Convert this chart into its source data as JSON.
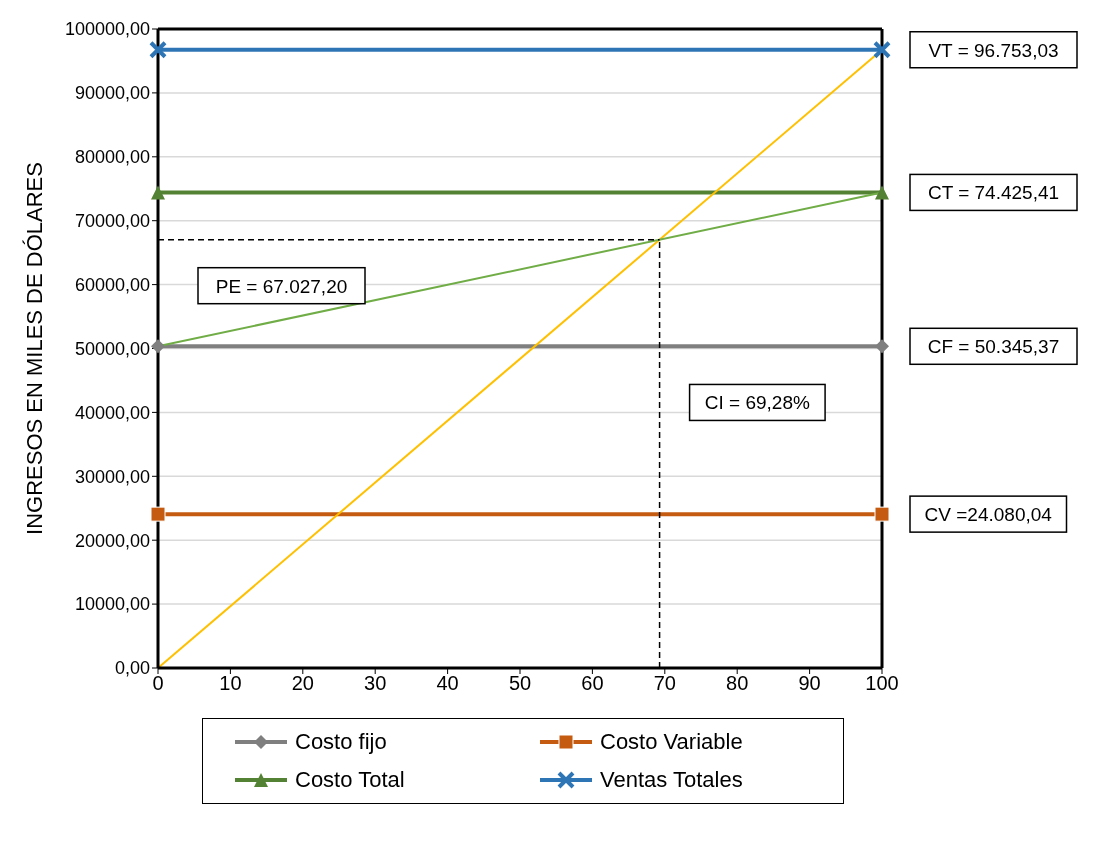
{
  "chart_data": {
    "type": "line",
    "ylabel": "INGRESOS EN MILES DE DÓLARES",
    "x": [
      0,
      100
    ],
    "xlim": [
      0,
      100
    ],
    "xticks": [
      0,
      10,
      20,
      30,
      40,
      50,
      60,
      70,
      80,
      90,
      100
    ],
    "ylim": [
      0,
      100000
    ],
    "yticks": [
      {
        "value": 0,
        "label": "0,00"
      },
      {
        "value": 10000,
        "label": "10000,00"
      },
      {
        "value": 20000,
        "label": "20000,00"
      },
      {
        "value": 30000,
        "label": "30000,00"
      },
      {
        "value": 40000,
        "label": "40000,00"
      },
      {
        "value": 50000,
        "label": "50000,00"
      },
      {
        "value": 60000,
        "label": "60000,00"
      },
      {
        "value": 70000,
        "label": "70000,00"
      },
      {
        "value": 80000,
        "label": "80000,00"
      },
      {
        "value": 90000,
        "label": "90000,00"
      },
      {
        "value": 100000,
        "label": "100000,00"
      }
    ],
    "grid": "y",
    "legend": "bottom",
    "series": [
      {
        "name": "Costo fijo",
        "color": "#7f7f7f",
        "marker": "diamond",
        "values": [
          50345.37,
          50345.37
        ]
      },
      {
        "name": "Costo Variable",
        "color": "#c55a11",
        "marker": "square",
        "values": [
          24080.04,
          24080.04
        ]
      },
      {
        "name": "Costo Total",
        "color": "#548235",
        "marker": "triangle",
        "values": [
          74425.41,
          74425.41
        ]
      },
      {
        "name": "Ventas Totales",
        "color": "#2e75b6",
        "marker": "cross",
        "values": [
          96753.03,
          96753.03
        ]
      },
      {
        "color": "#ffc000",
        "marker": "none",
        "values": [
          0,
          96753.03
        ]
      },
      {
        "color": "#70ad47",
        "marker": "none",
        "values": [
          50345.37,
          74425.41
        ]
      }
    ],
    "ref_lines": [
      {
        "axis": "y",
        "value": 67027.2,
        "label": "PE = 67.027,20",
        "color": "#000000",
        "line_style": "dashed"
      },
      {
        "axis": "x",
        "value": 69.28,
        "label": "CI = 69,28%",
        "color": "#000000",
        "line_style": "dashed"
      }
    ],
    "annotations": [
      "VT = 96.753,03",
      "CT = 74.425,41",
      "CF = 50.345,37",
      "CV =24.080,04"
    ]
  }
}
